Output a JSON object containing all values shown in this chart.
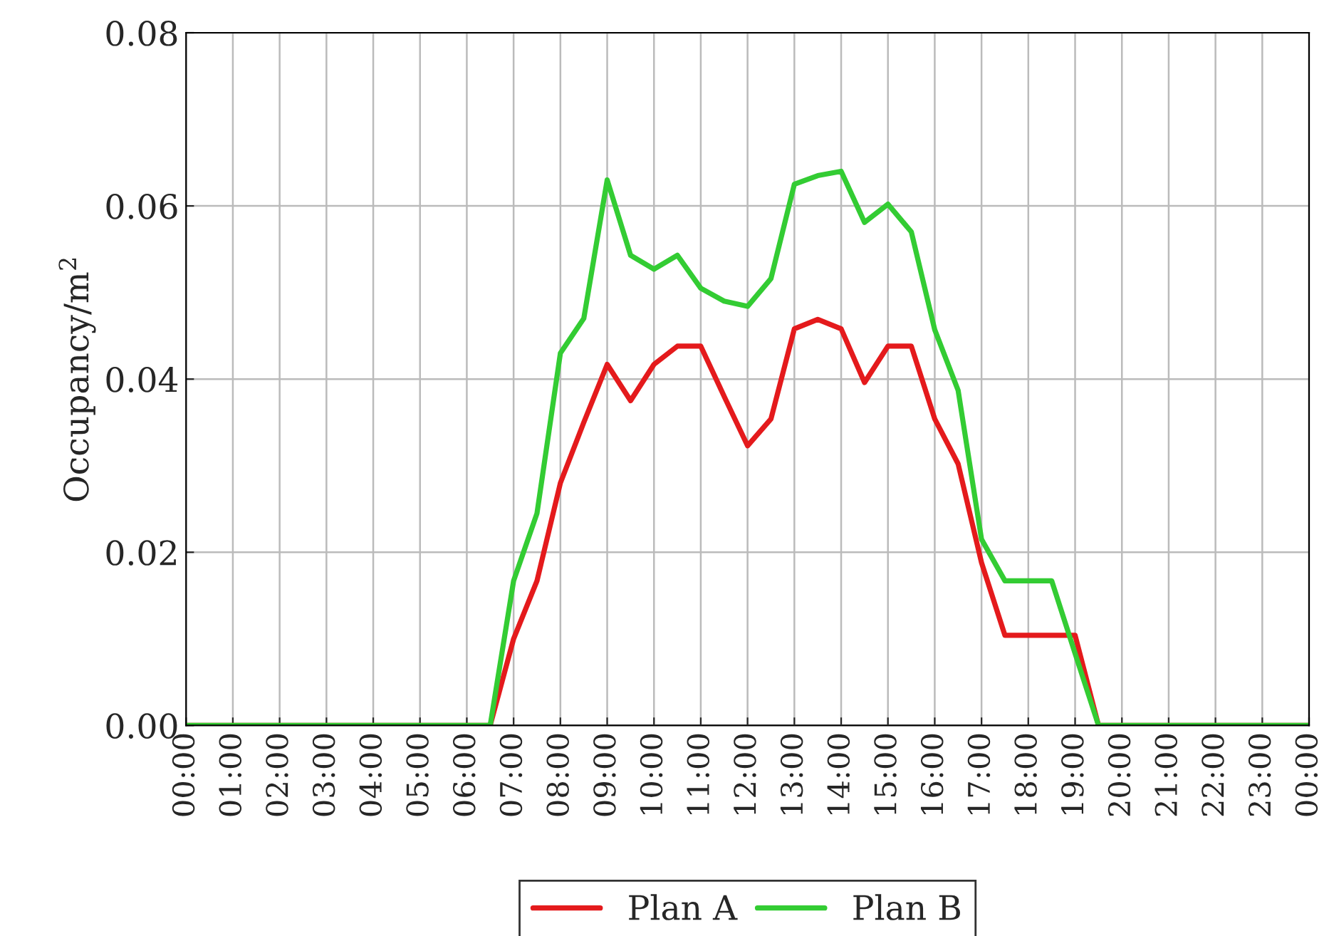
{
  "chart_data": {
    "type": "line",
    "ylabel": "Occupancy/m$^{2}$",
    "x": [
      0,
      6.5,
      7,
      7.5,
      8,
      8.5,
      9,
      9.5,
      10,
      10.5,
      11,
      11.5,
      12,
      12.5,
      13,
      13.5,
      14,
      14.5,
      15,
      15.5,
      16,
      16.5,
      17,
      17.5,
      18,
      18.5,
      19,
      19.5,
      24
    ],
    "series": [
      {
        "name": "Plan A",
        "color": "#e41a1c",
        "values": [
          0,
          0,
          0.01,
          0.0167,
          0.028,
          0.035,
          0.0417,
          0.0375,
          0.0417,
          0.0438,
          0.0438,
          0.038,
          0.0323,
          0.0354,
          0.0458,
          0.0469,
          0.0458,
          0.0396,
          0.0438,
          0.0438,
          0.0354,
          0.0302,
          0.0188,
          0.0104,
          0.0104,
          0.0104,
          0.0104,
          0,
          0
        ]
      },
      {
        "name": "Plan B",
        "color": "#33cc33",
        "values": [
          0,
          0,
          0.0167,
          0.0245,
          0.043,
          0.047,
          0.063,
          0.0543,
          0.0527,
          0.0543,
          0.0505,
          0.049,
          0.0484,
          0.0516,
          0.0625,
          0.0635,
          0.064,
          0.0581,
          0.0602,
          0.057,
          0.0457,
          0.0387,
          0.0215,
          0.0167,
          0.0167,
          0.0167,
          0.0083,
          0,
          0
        ]
      }
    ],
    "xlim": [
      0,
      24
    ],
    "xticks": [
      {
        "value": 0,
        "label": "00:00"
      },
      {
        "value": 1,
        "label": "01:00"
      },
      {
        "value": 2,
        "label": "02:00"
      },
      {
        "value": 3,
        "label": "03:00"
      },
      {
        "value": 4,
        "label": "04:00"
      },
      {
        "value": 5,
        "label": "05:00"
      },
      {
        "value": 6,
        "label": "06:00"
      },
      {
        "value": 7,
        "label": "07:00"
      },
      {
        "value": 8,
        "label": "08:00"
      },
      {
        "value": 9,
        "label": "09:00"
      },
      {
        "value": 10,
        "label": "10:00"
      },
      {
        "value": 11,
        "label": "11:00"
      },
      {
        "value": 12,
        "label": "12:00"
      },
      {
        "value": 13,
        "label": "13:00"
      },
      {
        "value": 14,
        "label": "14:00"
      },
      {
        "value": 15,
        "label": "15:00"
      },
      {
        "value": 16,
        "label": "16:00"
      },
      {
        "value": 17,
        "label": "17:00"
      },
      {
        "value": 18,
        "label": "18:00"
      },
      {
        "value": 19,
        "label": "19:00"
      },
      {
        "value": 20,
        "label": "20:00"
      },
      {
        "value": 21,
        "label": "21:00"
      },
      {
        "value": 22,
        "label": "22:00"
      },
      {
        "value": 23,
        "label": "23:00"
      },
      {
        "value": 24,
        "label": "00:00"
      }
    ],
    "ylim": [
      0,
      0.08
    ],
    "yticks": [
      {
        "value": 0,
        "label": "0.00"
      },
      {
        "value": 0.02,
        "label": "0.02"
      },
      {
        "value": 0.04,
        "label": "0.04"
      },
      {
        "value": 0.06,
        "label": "0.06"
      },
      {
        "value": 0.08,
        "label": "0.08"
      }
    ],
    "grid": true,
    "legend": "bottom",
    "line_style": "solid",
    "marker": "none"
  }
}
